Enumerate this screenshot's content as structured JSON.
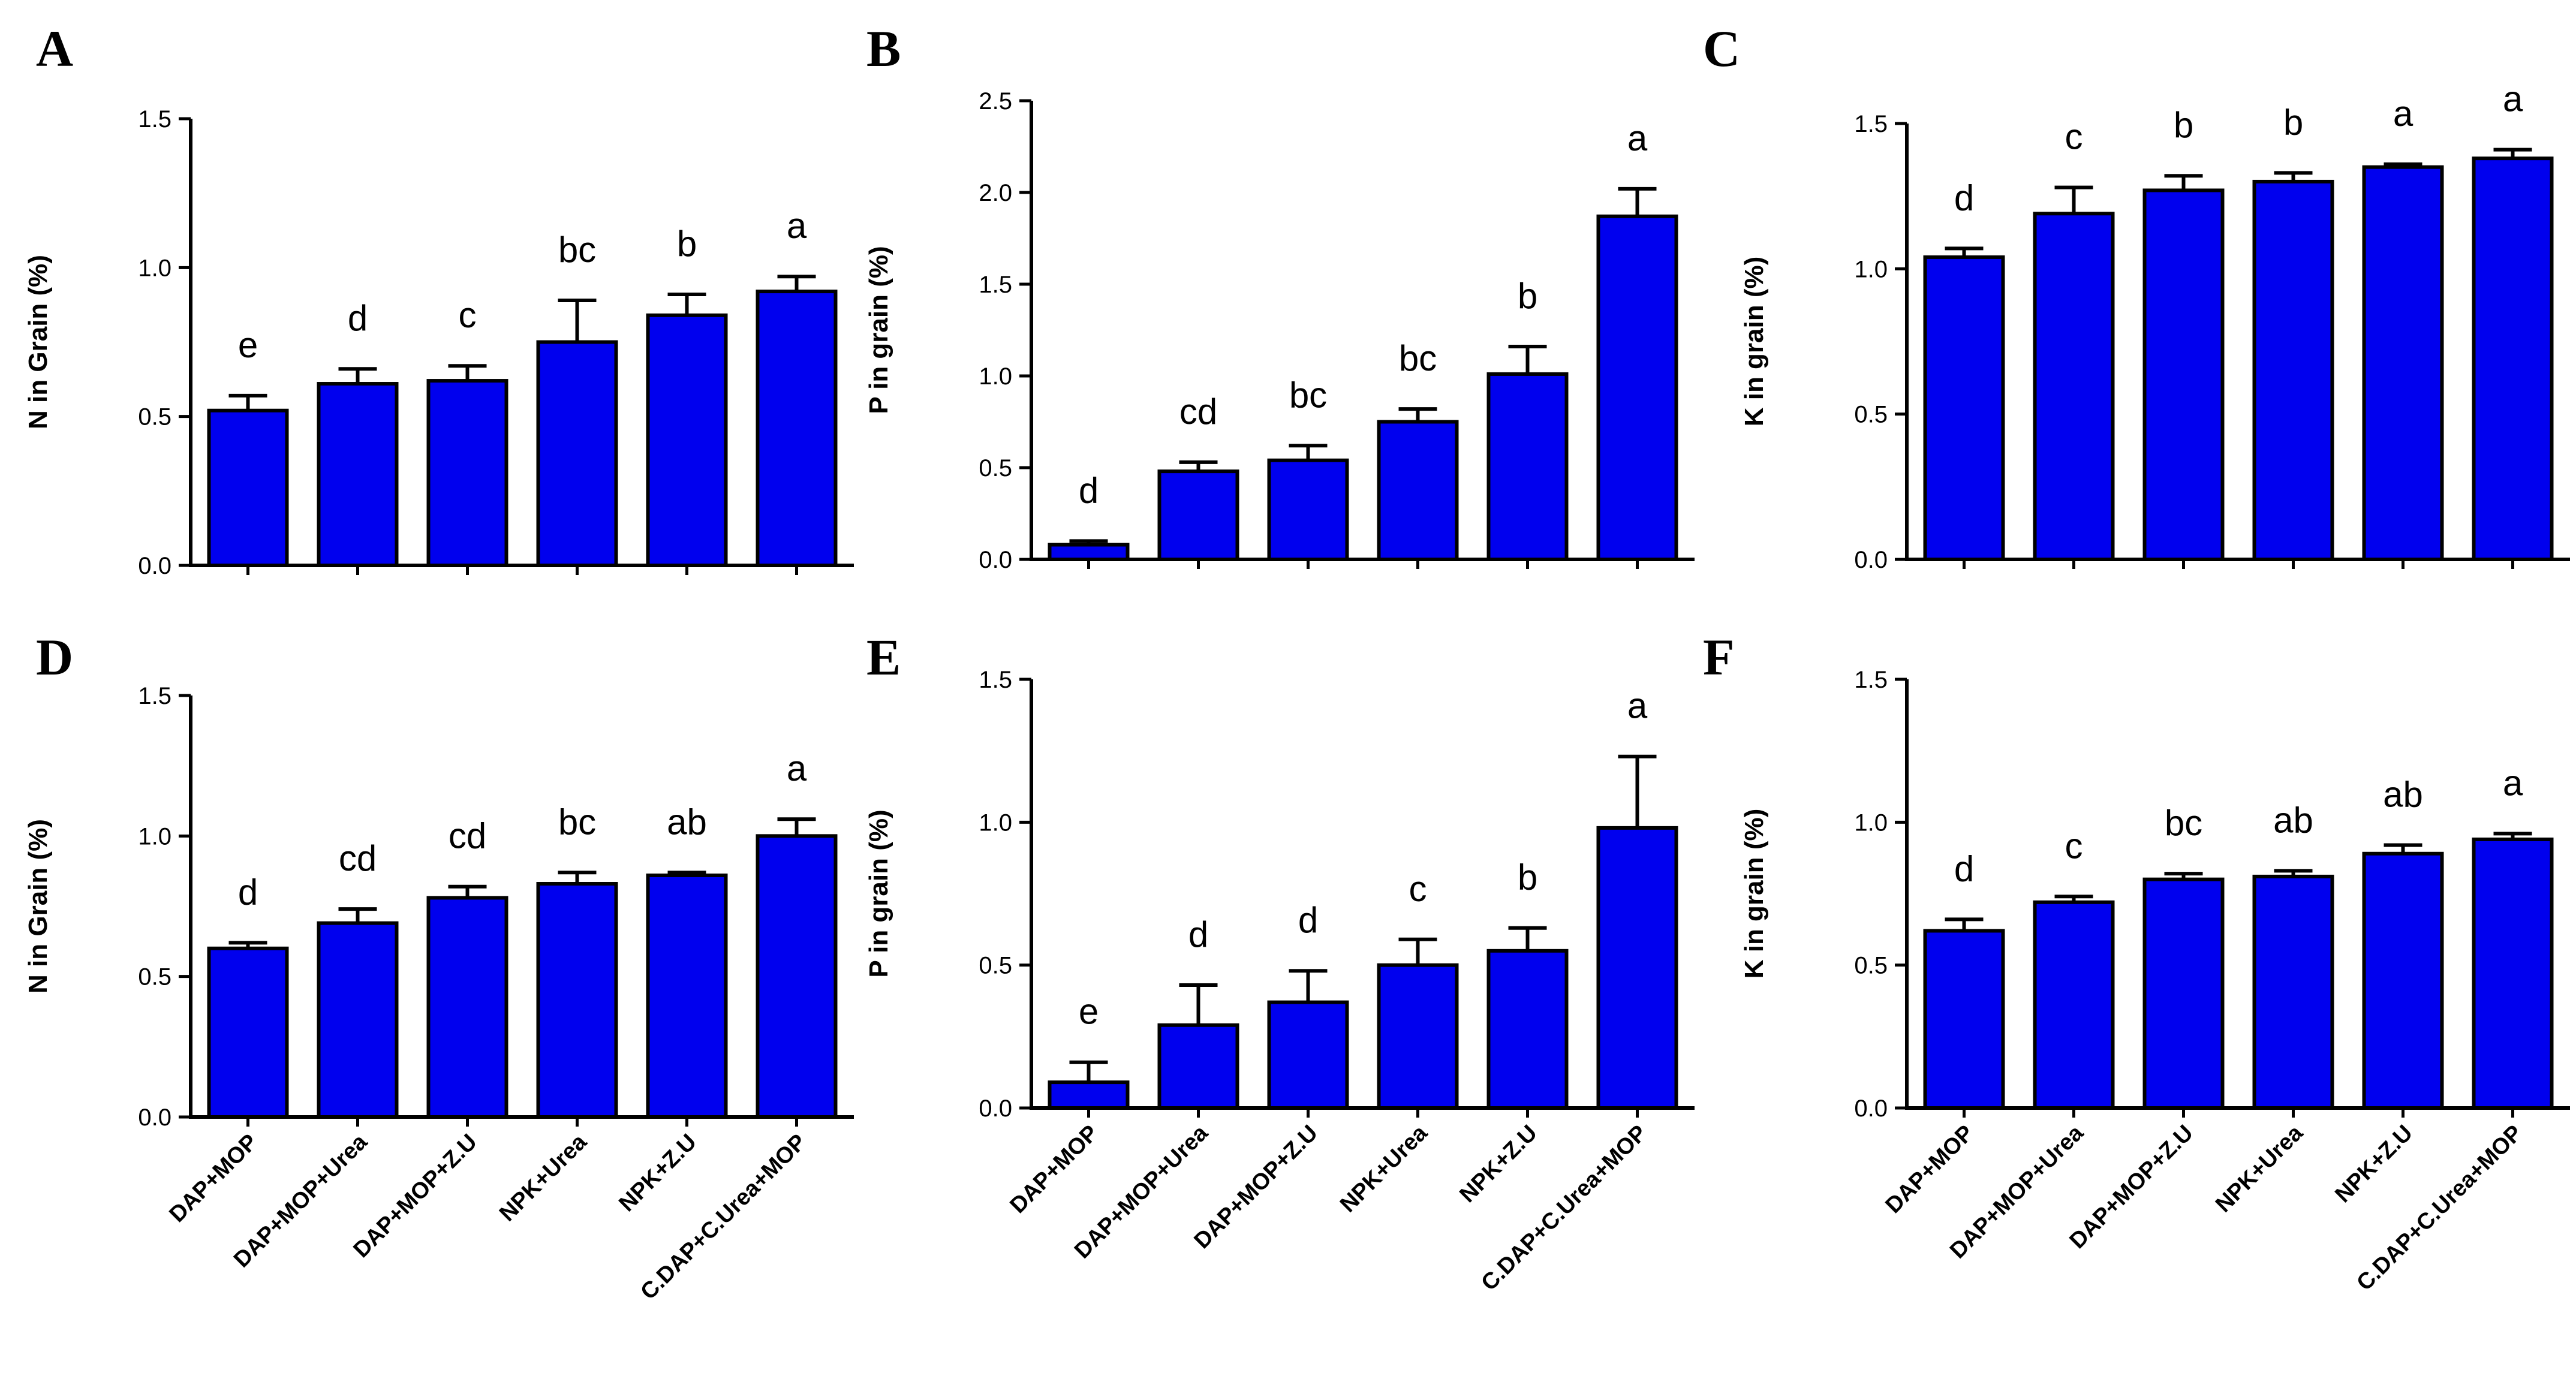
{
  "figure": {
    "panels": [
      "A",
      "B",
      "C",
      "D",
      "E",
      "F"
    ]
  },
  "chart_data": [
    {
      "panel": "A",
      "type": "bar",
      "ylabel": "N in Grain (%)",
      "ylim": [
        0,
        1.5
      ],
      "yticks": [
        "0.0",
        "0.5",
        "1.0",
        "1.5"
      ],
      "categories": [
        "DAP+MOP",
        "DAP+MOP+Urea",
        "DAP+MOP+Z.U",
        "NPK+Urea",
        "NPK+Z.U",
        "C.DAP+C.Urea+MOP"
      ],
      "show_categories": false,
      "values": [
        0.52,
        0.61,
        0.62,
        0.75,
        0.84,
        0.92
      ],
      "errors": [
        0.05,
        0.05,
        0.05,
        0.14,
        0.07,
        0.05
      ],
      "letters": [
        "e",
        "d",
        "c",
        "bc",
        "b",
        "a"
      ],
      "color": "#0000ee"
    },
    {
      "panel": "B",
      "type": "bar",
      "ylabel": "P in grain (%)",
      "ylim": [
        0,
        2.5
      ],
      "yticks": [
        "0.0",
        "0.5",
        "1.0",
        "1.5",
        "2.0",
        "2.5"
      ],
      "categories": [
        "DAP+MOP",
        "DAP+MOP+Urea",
        "DAP+MOP+Z.U",
        "NPK+Urea",
        "NPK+Z.U",
        "C.DAP+C.Urea+MOP"
      ],
      "show_categories": false,
      "values": [
        0.08,
        0.48,
        0.54,
        0.75,
        1.01,
        1.87
      ],
      "errors": [
        0.02,
        0.05,
        0.08,
        0.07,
        0.15,
        0.15
      ],
      "letters": [
        "d",
        "cd",
        "bc",
        "bc",
        "b",
        "a"
      ],
      "color": "#0000ee"
    },
    {
      "panel": "C",
      "type": "bar",
      "ylabel": "K in grain (%)",
      "ylim": [
        0,
        1.5
      ],
      "yticks": [
        "0.0",
        "0.5",
        "1.0",
        "1.5"
      ],
      "categories": [
        "DAP+MOP",
        "DAP+MOP+Urea",
        "DAP+MOP+Z.U",
        "NPK+Urea",
        "NPK+Z.U",
        "C.DAP+C.Urea+MOP"
      ],
      "show_categories": false,
      "values": [
        1.04,
        1.19,
        1.27,
        1.3,
        1.35,
        1.38
      ],
      "errors": [
        0.03,
        0.09,
        0.05,
        0.03,
        0.01,
        0.03
      ],
      "letters": [
        "d",
        "c",
        "b",
        "b",
        "a",
        "a"
      ],
      "color": "#0000ee"
    },
    {
      "panel": "D",
      "type": "bar",
      "ylabel": "N in Grain (%)",
      "ylim": [
        0,
        1.5
      ],
      "yticks": [
        "0.0",
        "0.5",
        "1.0",
        "1.5"
      ],
      "categories": [
        "DAP+MOP",
        "DAP+MOP+Urea",
        "DAP+MOP+Z.U",
        "NPK+Urea",
        "NPK+Z.U",
        "C.DAP+C.Urea+MOP"
      ],
      "show_categories": true,
      "values": [
        0.6,
        0.69,
        0.78,
        0.83,
        0.86,
        1.0
      ],
      "errors": [
        0.02,
        0.05,
        0.04,
        0.04,
        0.01,
        0.06
      ],
      "letters": [
        "d",
        "cd",
        "cd",
        "bc",
        "ab",
        "a"
      ],
      "color": "#0000ee"
    },
    {
      "panel": "E",
      "type": "bar",
      "ylabel": "P in grain (%)",
      "ylim": [
        0,
        1.5
      ],
      "yticks": [
        "0.0",
        "0.5",
        "1.0",
        "1.5"
      ],
      "categories": [
        "DAP+MOP",
        "DAP+MOP+Urea",
        "DAP+MOP+Z.U",
        "NPK+Urea",
        "NPK+Z.U",
        "C.DAP+C.Urea+MOP"
      ],
      "show_categories": true,
      "values": [
        0.09,
        0.29,
        0.37,
        0.5,
        0.55,
        0.98
      ],
      "errors": [
        0.07,
        0.14,
        0.11,
        0.09,
        0.08,
        0.25
      ],
      "letters": [
        "e",
        "d",
        "d",
        "c",
        "b",
        "a"
      ],
      "color": "#0000ee"
    },
    {
      "panel": "F",
      "type": "bar",
      "ylabel": "K in grain (%)",
      "ylim": [
        0,
        1.5
      ],
      "yticks": [
        "0.0",
        "0.5",
        "1.0",
        "1.5"
      ],
      "categories": [
        "DAP+MOP",
        "DAP+MOP+Urea",
        "DAP+MOP+Z.U",
        "NPK+Urea",
        "NPK+Z.U",
        "C.DAP+C.Urea+MOP"
      ],
      "show_categories": true,
      "values": [
        0.62,
        0.72,
        0.8,
        0.81,
        0.89,
        0.94
      ],
      "errors": [
        0.04,
        0.02,
        0.02,
        0.02,
        0.03,
        0.02
      ],
      "letters": [
        "d",
        "c",
        "bc",
        "ab",
        "ab",
        "a"
      ],
      "color": "#0000ee"
    }
  ]
}
